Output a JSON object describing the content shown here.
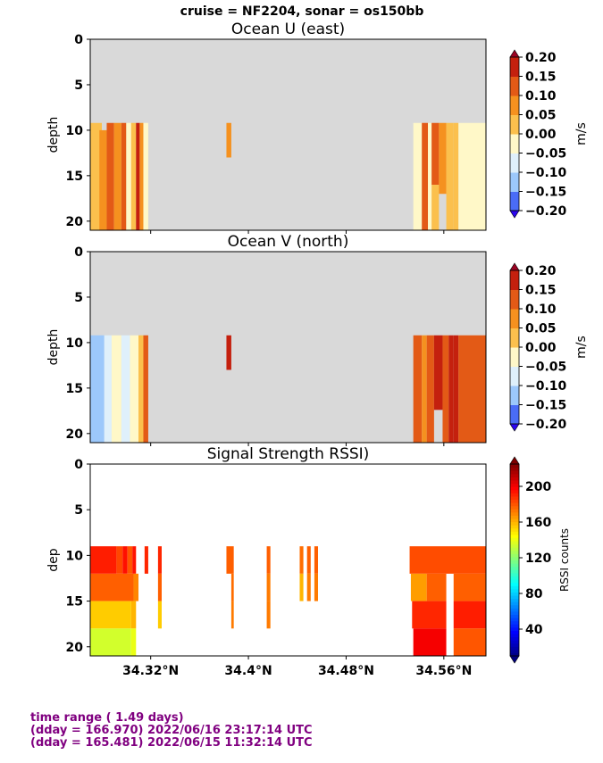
{
  "suptitle": "cruise = NF2204,  sonar = os150bb",
  "footer": {
    "line1": "time range ( 1.49 days)",
    "line2": "(dday = 166.970) 2022/06/16 23:17:14 UTC",
    "line3": "(dday = 165.481) 2022/06/15 11:32:14 UTC"
  },
  "colors": {
    "nodata": "#d9d9d9",
    "footer": "#800080"
  },
  "chart_data": [
    {
      "type": "heatmap",
      "title": "Ocean U (east)",
      "ylabel": "depth",
      "xlabel": "",
      "ylim": [
        21,
        0
      ],
      "xlim": [
        34.2705,
        34.5945
      ],
      "y_ticks": [
        "0",
        "5",
        "10",
        "15",
        "20"
      ],
      "y_tick_values": [
        0,
        5,
        10,
        15,
        20
      ],
      "x_ticks": [],
      "colorbar": {
        "label": "m/s",
        "range": [
          -0.2,
          0.2
        ],
        "ticks": [
          "0.20",
          "0.15",
          "0.10",
          "0.05",
          "0.00",
          "−0.05",
          "−0.10",
          "−0.15",
          "−0.20"
        ],
        "tick_values": [
          0.2,
          0.15,
          0.1,
          0.05,
          0.0,
          -0.05,
          -0.1,
          -0.15,
          -0.2
        ],
        "colors": [
          "#2b05f0",
          "#4a6cf6",
          "#9cc8fb",
          "#dff0fb",
          "#fff8c8",
          "#fbc04d",
          "#f5911f",
          "#e35a16",
          "#c4200e",
          "#9b0323"
        ]
      },
      "cells": [
        {
          "x": [
            34.2705,
            34.28
          ],
          "depth": [
            9.2,
            21
          ],
          "value": 0.03
        },
        {
          "x": [
            34.278,
            34.284
          ],
          "depth": [
            10,
            21
          ],
          "value": 0.08
        },
        {
          "x": [
            34.284,
            34.29
          ],
          "depth": [
            9.2,
            21
          ],
          "value": 0.12
        },
        {
          "x": [
            34.29,
            34.296
          ],
          "depth": [
            9.2,
            21
          ],
          "value": 0.09
        },
        {
          "x": [
            34.296,
            34.3
          ],
          "depth": [
            9.2,
            21
          ],
          "value": 0.14
        },
        {
          "x": [
            34.3,
            34.304
          ],
          "depth": [
            9.2,
            21
          ],
          "value": -0.04
        },
        {
          "x": [
            34.304,
            34.308
          ],
          "depth": [
            9.2,
            21
          ],
          "value": 0.03
        },
        {
          "x": [
            34.308,
            34.311
          ],
          "depth": [
            9.2,
            21
          ],
          "value": 0.16
        },
        {
          "x": [
            34.311,
            34.314
          ],
          "depth": [
            9.2,
            21
          ],
          "value": 0.06
        },
        {
          "x": [
            34.314,
            34.318
          ],
          "depth": [
            9.2,
            21
          ],
          "value": -0.04
        },
        {
          "x": [
            34.382,
            34.386
          ],
          "depth": [
            9.2,
            13
          ],
          "value": 0.07
        },
        {
          "x": [
            34.535,
            34.542
          ],
          "depth": [
            9.2,
            21
          ],
          "value": -0.03
        },
        {
          "x": [
            34.542,
            34.547
          ],
          "depth": [
            9.2,
            21
          ],
          "value": 0.12
        },
        {
          "x": [
            34.547,
            34.55
          ],
          "depth": [
            9.2,
            21
          ],
          "value": -0.02
        },
        {
          "x": [
            34.55,
            34.556
          ],
          "depth": [
            9.2,
            16
          ],
          "value": 0.13
        },
        {
          "x": [
            34.55,
            34.556
          ],
          "depth": [
            16,
            21
          ],
          "value": 0.04
        },
        {
          "x": [
            34.556,
            34.562
          ],
          "depth": [
            9.2,
            17
          ],
          "value": 0.08
        },
        {
          "x": [
            34.562,
            34.568
          ],
          "depth": [
            9.2,
            21
          ],
          "value": 0.02
        },
        {
          "x": [
            34.568,
            34.572
          ],
          "depth": [
            9.2,
            21
          ],
          "value": 0.03
        },
        {
          "x": [
            34.572,
            34.5945
          ],
          "depth": [
            9.2,
            21
          ],
          "value": -0.04
        }
      ]
    },
    {
      "type": "heatmap",
      "title": "Ocean V (north)",
      "ylabel": "depth",
      "xlabel": "",
      "ylim": [
        21,
        0
      ],
      "xlim": [
        34.2705,
        34.5945
      ],
      "y_ticks": [
        "0",
        "5",
        "10",
        "15",
        "20"
      ],
      "y_tick_values": [
        0,
        5,
        10,
        15,
        20
      ],
      "x_ticks": [],
      "colorbar": {
        "label": "m/s",
        "range": [
          -0.2,
          0.2
        ],
        "ticks": [
          "0.20",
          "0.15",
          "0.10",
          "0.05",
          "0.00",
          "−0.05",
          "−0.10",
          "−0.15",
          "−0.20"
        ],
        "tick_values": [
          0.2,
          0.15,
          0.1,
          0.05,
          0.0,
          -0.05,
          -0.1,
          -0.15,
          -0.2
        ],
        "colors": [
          "#2b05f0",
          "#4a6cf6",
          "#9cc8fb",
          "#dff0fb",
          "#fff8c8",
          "#fbc04d",
          "#f5911f",
          "#e35a16",
          "#c4200e",
          "#9b0323"
        ]
      },
      "cells": [
        {
          "x": [
            34.2705,
            34.282
          ],
          "depth": [
            9.2,
            21
          ],
          "value": -0.13
        },
        {
          "x": [
            34.282,
            34.288
          ],
          "depth": [
            9.2,
            21
          ],
          "value": -0.06
        },
        {
          "x": [
            34.288,
            34.296
          ],
          "depth": [
            9.2,
            21
          ],
          "value": -0.03
        },
        {
          "x": [
            34.296,
            34.303
          ],
          "depth": [
            9.2,
            21
          ],
          "value": -0.07
        },
        {
          "x": [
            34.303,
            34.31
          ],
          "depth": [
            9.2,
            21
          ],
          "value": -0.02
        },
        {
          "x": [
            34.31,
            34.314
          ],
          "depth": [
            9.2,
            21
          ],
          "value": 0.03
        },
        {
          "x": [
            34.314,
            34.318
          ],
          "depth": [
            9.2,
            21
          ],
          "value": 0.11
        },
        {
          "x": [
            34.382,
            34.386
          ],
          "depth": [
            9.2,
            13
          ],
          "value": 0.18
        },
        {
          "x": [
            34.535,
            34.542
          ],
          "depth": [
            9.2,
            21
          ],
          "value": 0.11
        },
        {
          "x": [
            34.542,
            34.546
          ],
          "depth": [
            9.2,
            21
          ],
          "value": 0.07
        },
        {
          "x": [
            34.546,
            34.552
          ],
          "depth": [
            9.2,
            21
          ],
          "value": 0.13
        },
        {
          "x": [
            34.552,
            34.559
          ],
          "depth": [
            9.2,
            17.4
          ],
          "value": 0.16
        },
        {
          "x": [
            34.559,
            34.564
          ],
          "depth": [
            9.2,
            21
          ],
          "value": 0.13
        },
        {
          "x": [
            34.564,
            34.568
          ],
          "depth": [
            9.2,
            21
          ],
          "value": 0.18
        },
        {
          "x": [
            34.568,
            34.572
          ],
          "depth": [
            9.2,
            21
          ],
          "value": 0.16
        },
        {
          "x": [
            34.572,
            34.5945
          ],
          "depth": [
            9.2,
            21
          ],
          "value": 0.13
        }
      ]
    },
    {
      "type": "heatmap",
      "title": "Signal Strength RSSI)",
      "ylabel": "dep",
      "xlabel": "",
      "ylim": [
        21,
        0
      ],
      "xlim": [
        34.2705,
        34.5945
      ],
      "y_ticks": [
        "0",
        "5",
        "10",
        "15",
        "20"
      ],
      "y_tick_values": [
        0,
        5,
        10,
        15,
        20
      ],
      "x_ticks": [
        "34.32°N",
        "34.4°N",
        "34.48°N",
        "34.56°N"
      ],
      "x_tick_values": [
        34.32,
        34.4,
        34.48,
        34.56
      ],
      "colorbar": {
        "label": "RSSI counts",
        "range": [
          10,
          225
        ],
        "ticks": [
          "200",
          "160",
          "120",
          "80",
          "40"
        ],
        "tick_values": [
          200,
          160,
          120,
          80,
          40
        ],
        "colors": [
          "#00007f",
          "#0000ff",
          "#007fff",
          "#00ffff",
          "#7fff7f",
          "#ffff00",
          "#ff7f00",
          "#ff0000",
          "#7f0000"
        ]
      },
      "cells": [
        {
          "x": [
            34.2705,
            34.292
          ],
          "depth": [
            9,
            12
          ],
          "value": 192
        },
        {
          "x": [
            34.292,
            34.297
          ],
          "depth": [
            9,
            12
          ],
          "value": 183
        },
        {
          "x": [
            34.297,
            34.301
          ],
          "depth": [
            9,
            12
          ],
          "value": 195
        },
        {
          "x": [
            34.301,
            34.305
          ],
          "depth": [
            9,
            12
          ],
          "value": 180
        },
        {
          "x": [
            34.305,
            34.308
          ],
          "depth": [
            9,
            12
          ],
          "value": 194
        },
        {
          "x": [
            34.2705,
            34.306
          ],
          "depth": [
            12,
            15
          ],
          "value": 178
        },
        {
          "x": [
            34.306,
            34.31
          ],
          "depth": [
            12,
            15
          ],
          "value": 170
        },
        {
          "x": [
            34.2705,
            34.304
          ],
          "depth": [
            15,
            18
          ],
          "value": 155
        },
        {
          "x": [
            34.304,
            34.308
          ],
          "depth": [
            15,
            18
          ],
          "value": 160
        },
        {
          "x": [
            34.2705,
            34.304
          ],
          "depth": [
            18,
            21
          ],
          "value": 135
        },
        {
          "x": [
            34.304,
            34.308
          ],
          "depth": [
            18,
            21
          ],
          "value": 140
        },
        {
          "x": [
            34.315,
            34.318
          ],
          "depth": [
            9,
            12
          ],
          "value": 190
        },
        {
          "x": [
            34.326,
            34.329
          ],
          "depth": [
            9,
            12
          ],
          "value": 190
        },
        {
          "x": [
            34.326,
            34.329
          ],
          "depth": [
            12,
            15
          ],
          "value": 178
        },
        {
          "x": [
            34.326,
            34.329
          ],
          "depth": [
            15,
            18
          ],
          "value": 155
        },
        {
          "x": [
            34.382,
            34.388
          ],
          "depth": [
            9,
            12
          ],
          "value": 178
        },
        {
          "x": [
            34.386,
            34.388
          ],
          "depth": [
            12,
            15
          ],
          "value": 175
        },
        {
          "x": [
            34.386,
            34.388
          ],
          "depth": [
            15,
            18
          ],
          "value": 172
        },
        {
          "x": [
            34.415,
            34.418
          ],
          "depth": [
            9,
            12
          ],
          "value": 178
        },
        {
          "x": [
            34.415,
            34.418
          ],
          "depth": [
            12,
            15
          ],
          "value": 172
        },
        {
          "x": [
            34.415,
            34.418
          ],
          "depth": [
            15,
            18
          ],
          "value": 172
        },
        {
          "x": [
            34.442,
            34.445
          ],
          "depth": [
            9,
            12
          ],
          "value": 175
        },
        {
          "x": [
            34.442,
            34.445
          ],
          "depth": [
            12,
            15
          ],
          "value": 160
        },
        {
          "x": [
            34.448,
            34.451
          ],
          "depth": [
            9,
            12
          ],
          "value": 178
        },
        {
          "x": [
            34.448,
            34.451
          ],
          "depth": [
            12,
            15
          ],
          "value": 172
        },
        {
          "x": [
            34.454,
            34.457
          ],
          "depth": [
            9,
            12
          ],
          "value": 178
        },
        {
          "x": [
            34.454,
            34.457
          ],
          "depth": [
            12,
            15
          ],
          "value": 172
        },
        {
          "x": [
            34.532,
            34.5945
          ],
          "depth": [
            9,
            12
          ],
          "value": 182
        },
        {
          "x": [
            34.533,
            34.546
          ],
          "depth": [
            12,
            15
          ],
          "value": 165
        },
        {
          "x": [
            34.546,
            34.562
          ],
          "depth": [
            12,
            15
          ],
          "value": 178
        },
        {
          "x": [
            34.568,
            34.5945
          ],
          "depth": [
            12,
            15
          ],
          "value": 178
        },
        {
          "x": [
            34.534,
            34.562
          ],
          "depth": [
            15,
            18
          ],
          "value": 190
        },
        {
          "x": [
            34.568,
            34.5945
          ],
          "depth": [
            15,
            18
          ],
          "value": 192
        },
        {
          "x": [
            34.535,
            34.562
          ],
          "depth": [
            18,
            21
          ],
          "value": 200
        },
        {
          "x": [
            34.568,
            34.5945
          ],
          "depth": [
            18,
            21
          ],
          "value": 180
        }
      ]
    }
  ]
}
